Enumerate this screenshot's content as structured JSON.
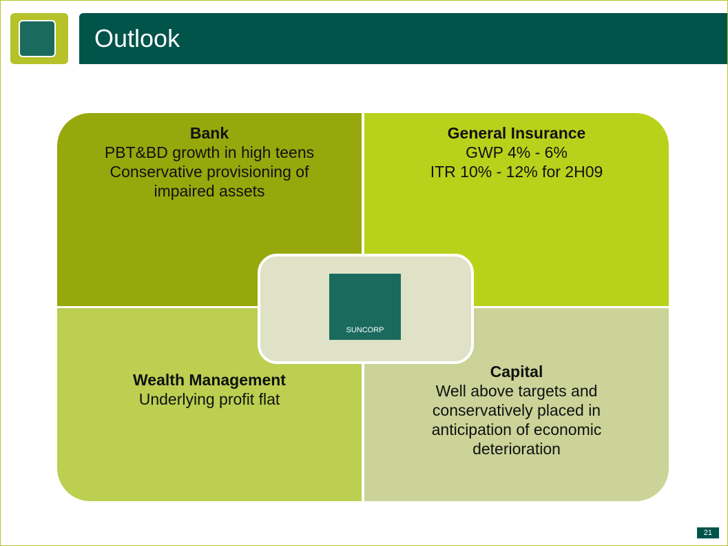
{
  "header": {
    "title": "Outlook"
  },
  "quadrants": [
    {
      "title": "Bank",
      "lines": [
        "PBT&BD growth in high teens",
        "Conservative provisioning of impaired assets"
      ]
    },
    {
      "title": "General Insurance",
      "lines": [
        "GWP 4% - 6%",
        "ITR 10% - 12% for 2H09"
      ]
    },
    {
      "title": "Wealth Management",
      "lines": [
        "Underlying profit flat"
      ]
    },
    {
      "title": "Capital",
      "lines": [
        "Well above targets and conservatively placed in anticipation of economic deterioration"
      ]
    }
  ],
  "logo": {
    "text": "SUNCORP"
  },
  "page_number": "21"
}
